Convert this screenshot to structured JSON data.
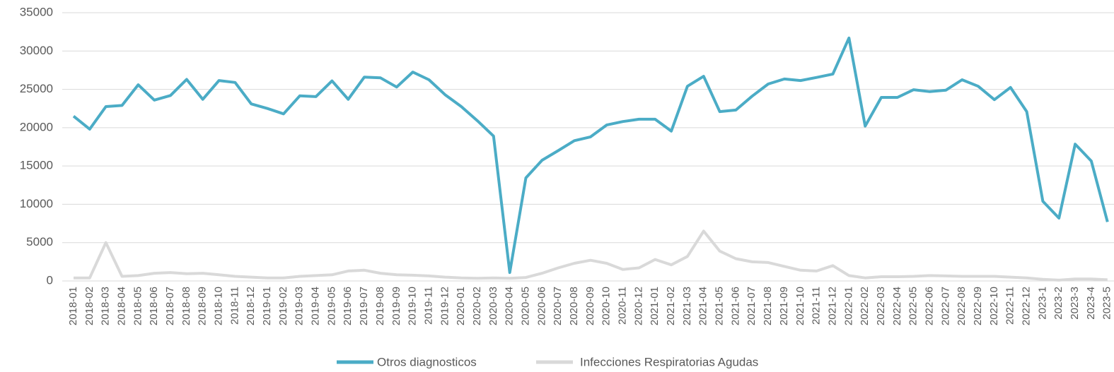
{
  "chart_data": {
    "type": "line",
    "categories": [
      "2018-01",
      "2018-02",
      "2018-03",
      "2018-04",
      "2018-05",
      "2018-06",
      "2018-07",
      "2018-08",
      "2018-09",
      "2018-10",
      "2018-11",
      "2018-12",
      "2019-01",
      "2019-02",
      "2019-03",
      "2019-04",
      "2019-05",
      "2019-06",
      "2019-07",
      "2019-08",
      "2019-09",
      "2019-10",
      "2019-11",
      "2019-12",
      "2020-01",
      "2020-02",
      "2020-03",
      "2020-04",
      "2020-05",
      "2020-06",
      "2020-07",
      "2020-08",
      "2020-09",
      "2020-10",
      "2020-11",
      "2020-12",
      "2021-01",
      "2021-02",
      "2021-03",
      "2021-04",
      "2021-05",
      "2021-06",
      "2021-07",
      "2021-08",
      "2021-09",
      "2021-10",
      "2021-11",
      "2021-12",
      "2022-01",
      "2022-02",
      "2022-03",
      "2022-04",
      "2022-05",
      "2022-06",
      "2022-07",
      "2022-08",
      "2022-09",
      "2022-10",
      "2022-11",
      "2022-12",
      "2023-1",
      "2023-2",
      "2023-3",
      "2023-4",
      "2023-5"
    ],
    "series": [
      {
        "name": "Otros diagnosticos",
        "color": "#4bacc6",
        "values": [
          21500,
          19800,
          22750,
          22900,
          25600,
          23600,
          24200,
          26300,
          23700,
          26150,
          25900,
          23100,
          22500,
          21800,
          24150,
          24050,
          26100,
          23700,
          26600,
          26500,
          25300,
          27250,
          26250,
          24300,
          22750,
          20900,
          18900,
          1100,
          13450,
          15750,
          17000,
          18300,
          18800,
          20350,
          20800,
          21100,
          21100,
          19550,
          25400,
          26700,
          22100,
          22300,
          24100,
          25700,
          26350,
          26150,
          26550,
          27000,
          31700,
          20200,
          23950,
          23950,
          24950,
          24700,
          24900,
          26250,
          25400,
          23650,
          25250,
          22100,
          10400,
          8200,
          17850,
          15650,
          7700
        ]
      },
      {
        "name": "Infecciones Respiratorias Agudas",
        "color": "#d9d9d9",
        "values": [
          400,
          400,
          5000,
          600,
          700,
          1000,
          1100,
          950,
          1000,
          800,
          600,
          500,
          400,
          400,
          600,
          700,
          800,
          1300,
          1400,
          1000,
          800,
          750,
          650,
          500,
          400,
          350,
          400,
          350,
          450,
          1000,
          1700,
          2300,
          2700,
          2300,
          1500,
          1700,
          2800,
          2100,
          3200,
          6500,
          3900,
          2900,
          2500,
          2400,
          1900,
          1400,
          1300,
          2000,
          700,
          400,
          550,
          550,
          600,
          700,
          650,
          600,
          600,
          600,
          500,
          400,
          200,
          100,
          250,
          250,
          150
        ]
      }
    ],
    "ylim": [
      0,
      35000
    ],
    "yticks": [
      0,
      5000,
      10000,
      15000,
      20000,
      25000,
      30000,
      35000
    ],
    "grid": true,
    "legend": "bottom"
  }
}
